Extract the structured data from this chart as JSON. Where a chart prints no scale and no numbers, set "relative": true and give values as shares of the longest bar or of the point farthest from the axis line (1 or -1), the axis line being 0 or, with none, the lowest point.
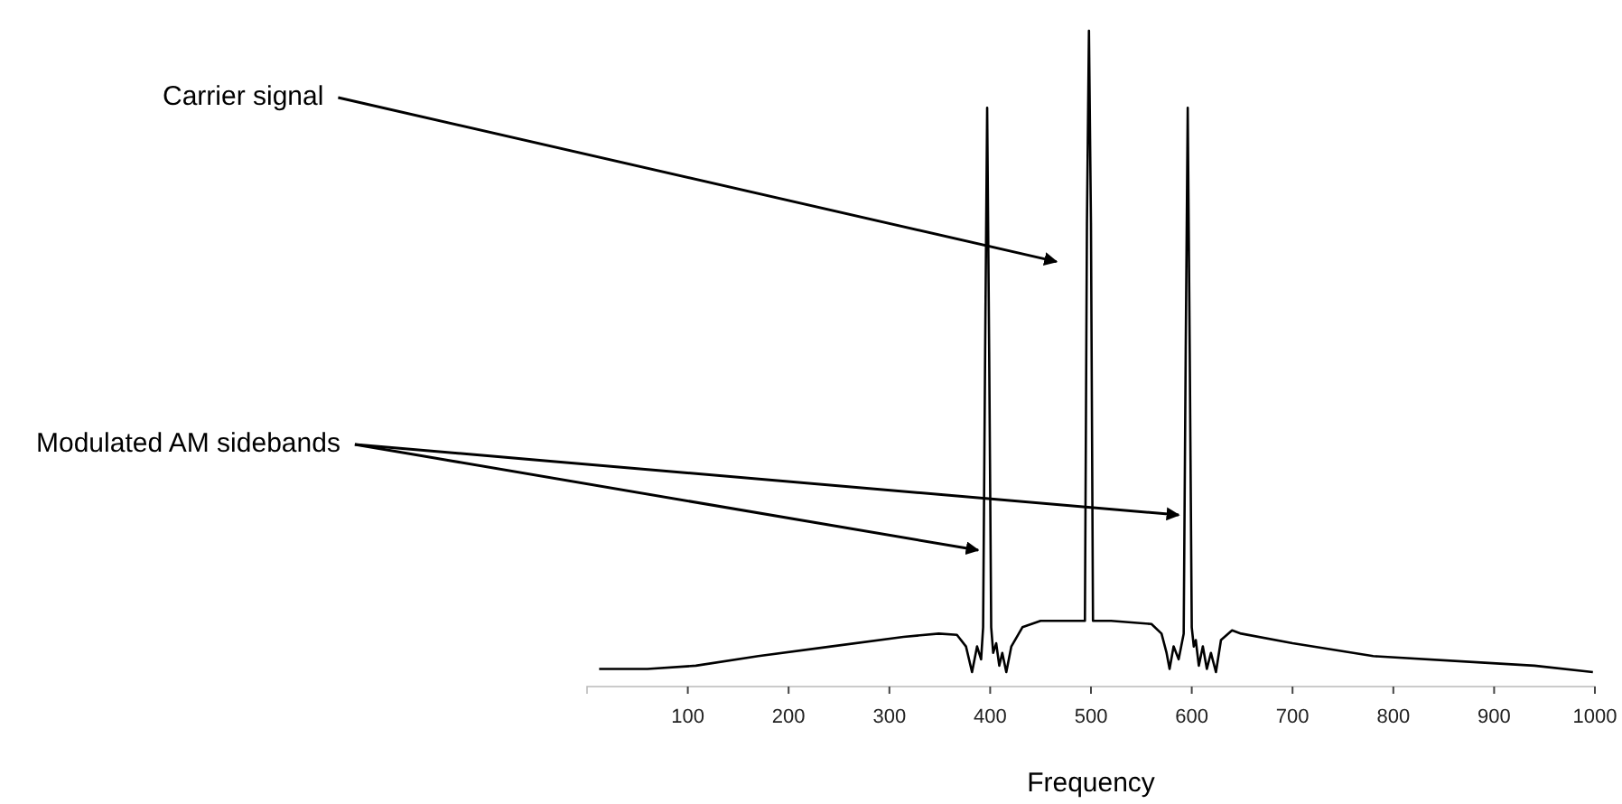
{
  "chart_data": {
    "type": "line",
    "relative": true,
    "xlabel": "Frequency",
    "xlim": [
      0,
      1000
    ],
    "xticks": [
      100,
      200,
      300,
      400,
      500,
      600,
      700,
      800,
      900,
      1000
    ],
    "annotations": [
      "Carrier signal",
      "Modulated AM sidebands"
    ],
    "series": [
      {
        "color": "#000000",
        "x": [
          12,
          60,
          108,
          170,
          242,
          314,
          349,
          367,
          376,
          382,
          387,
          391,
          393,
          395,
          397,
          399,
          401,
          403,
          406,
          409,
          412,
          416,
          421,
          432,
          450,
          480,
          494,
          496,
          498,
          500,
          502,
          504,
          520,
          560,
          570,
          575,
          578,
          582,
          587,
          592,
          594,
          596,
          598,
          600,
          602,
          604,
          607,
          611,
          615,
          619,
          624,
          629,
          640,
          649,
          700,
          780,
          887,
          940,
          998
        ],
        "values": [
          0.005,
          0.005,
          0.01,
          0.025,
          0.04,
          0.055,
          0.06,
          0.058,
          0.04,
          0,
          0.04,
          0.02,
          0.07,
          0.5,
          0.88,
          0.5,
          0.07,
          0.03,
          0.045,
          0.01,
          0.03,
          0,
          0.04,
          0.07,
          0.08,
          0.08,
          0.08,
          0.7,
          1,
          0.7,
          0.08,
          0.08,
          0.08,
          0.075,
          0.06,
          0.03,
          0.005,
          0.04,
          0.02,
          0.06,
          0.5,
          0.88,
          0.5,
          0.07,
          0.04,
          0.05,
          0.01,
          0.04,
          0.005,
          0.03,
          0,
          0.05,
          0.065,
          0.06,
          0.045,
          0.025,
          0.015,
          0.01,
          0
        ]
      }
    ]
  }
}
